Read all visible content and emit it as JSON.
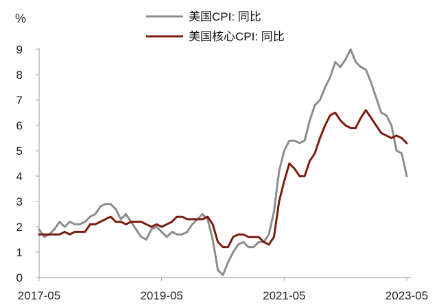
{
  "chart_data": {
    "type": "line",
    "unit_label": "%",
    "ylim": [
      0,
      9
    ],
    "y_ticks": [
      "0",
      "1",
      "2",
      "3",
      "4",
      "5",
      "6",
      "7",
      "8",
      "9"
    ],
    "x_ticks": [
      "2017-05",
      "2019-05",
      "2021-05",
      "2023-05"
    ],
    "grid": false,
    "legend_position": "top-center",
    "x": [
      "2017-05",
      "2017-06",
      "2017-07",
      "2017-08",
      "2017-09",
      "2017-10",
      "2017-11",
      "2017-12",
      "2018-01",
      "2018-02",
      "2018-03",
      "2018-04",
      "2018-05",
      "2018-06",
      "2018-07",
      "2018-08",
      "2018-09",
      "2018-10",
      "2018-11",
      "2018-12",
      "2019-01",
      "2019-02",
      "2019-03",
      "2019-04",
      "2019-05",
      "2019-06",
      "2019-07",
      "2019-08",
      "2019-09",
      "2019-10",
      "2019-11",
      "2019-12",
      "2020-01",
      "2020-02",
      "2020-03",
      "2020-04",
      "2020-05",
      "2020-06",
      "2020-07",
      "2020-08",
      "2020-09",
      "2020-10",
      "2020-11",
      "2020-12",
      "2021-01",
      "2021-02",
      "2021-03",
      "2021-04",
      "2021-05",
      "2021-06",
      "2021-07",
      "2021-08",
      "2021-09",
      "2021-10",
      "2021-11",
      "2021-12",
      "2022-01",
      "2022-02",
      "2022-03",
      "2022-04",
      "2022-05",
      "2022-06",
      "2022-07",
      "2022-08",
      "2022-09",
      "2022-10",
      "2022-11",
      "2022-12",
      "2023-01",
      "2023-02",
      "2023-03",
      "2023-04",
      "2023-05"
    ],
    "series": [
      {
        "name": "美国CPI: 同比",
        "color": "#8c8c8c",
        "values": [
          1.9,
          1.6,
          1.7,
          1.9,
          2.2,
          2.0,
          2.2,
          2.1,
          2.1,
          2.2,
          2.4,
          2.5,
          2.8,
          2.9,
          2.9,
          2.7,
          2.3,
          2.5,
          2.2,
          1.9,
          1.6,
          1.5,
          1.9,
          2.0,
          1.8,
          1.6,
          1.8,
          1.7,
          1.7,
          1.8,
          2.1,
          2.3,
          2.5,
          2.3,
          1.5,
          0.3,
          0.1,
          0.6,
          1.0,
          1.3,
          1.4,
          1.2,
          1.2,
          1.4,
          1.4,
          1.7,
          2.6,
          4.2,
          5.0,
          5.4,
          5.4,
          5.3,
          5.4,
          6.2,
          6.8,
          7.0,
          7.5,
          7.9,
          8.5,
          8.3,
          8.6,
          9.0,
          8.5,
          8.3,
          8.2,
          7.7,
          7.1,
          6.5,
          6.4,
          6.0,
          5.0,
          4.9,
          4.0
        ]
      },
      {
        "name": "美国核心CPI: 同比",
        "color": "#7a1c0c",
        "values": [
          1.7,
          1.7,
          1.7,
          1.7,
          1.7,
          1.8,
          1.7,
          1.8,
          1.8,
          1.8,
          2.1,
          2.1,
          2.2,
          2.3,
          2.4,
          2.2,
          2.2,
          2.1,
          2.2,
          2.2,
          2.2,
          2.1,
          2.0,
          2.1,
          2.0,
          2.1,
          2.2,
          2.4,
          2.4,
          2.3,
          2.3,
          2.3,
          2.3,
          2.4,
          2.1,
          1.4,
          1.2,
          1.2,
          1.6,
          1.7,
          1.7,
          1.6,
          1.6,
          1.6,
          1.4,
          1.3,
          1.6,
          3.0,
          3.8,
          4.5,
          4.3,
          4.0,
          4.0,
          4.6,
          4.9,
          5.5,
          6.0,
          6.4,
          6.5,
          6.2,
          6.0,
          5.9,
          5.9,
          6.3,
          6.6,
          6.3,
          6.0,
          5.7,
          5.6,
          5.5,
          5.6,
          5.5,
          5.3
        ]
      }
    ]
  }
}
